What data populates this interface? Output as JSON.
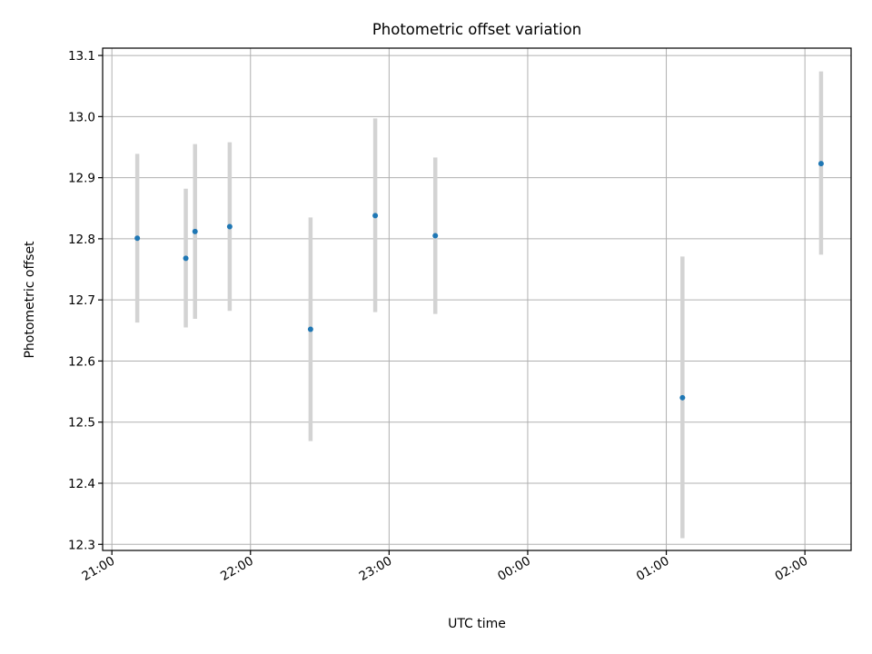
{
  "chart_data": {
    "type": "scatter",
    "title": "Photometric offset variation",
    "xlabel": "UTC time",
    "ylabel": "Photometric offset",
    "x_axis_type": "time",
    "xlim": [
      "20:56",
      "02:20"
    ],
    "ylim": [
      12.29,
      13.112
    ],
    "x_ticks": [
      "21:00",
      "22:00",
      "23:00",
      "00:00",
      "01:00",
      "02:00"
    ],
    "y_ticks": [
      12.3,
      12.4,
      12.5,
      12.6,
      12.7,
      12.8,
      12.9,
      13.0,
      13.1
    ],
    "y_tick_labels": [
      "12.3",
      "12.4",
      "12.5",
      "12.6",
      "12.7",
      "12.8",
      "12.9",
      "13.0",
      "13.1"
    ],
    "grid": true,
    "point_color": "#1f77b4",
    "errorbar_color": "#d3d3d3",
    "points": [
      {
        "x": "21:11",
        "y": 12.801,
        "ylow": 12.663,
        "yhigh": 12.939
      },
      {
        "x": "21:32",
        "y": 12.768,
        "ylow": 12.655,
        "yhigh": 12.882
      },
      {
        "x": "21:36",
        "y": 12.812,
        "ylow": 12.669,
        "yhigh": 12.955
      },
      {
        "x": "21:51",
        "y": 12.82,
        "ylow": 12.682,
        "yhigh": 12.958
      },
      {
        "x": "22:26",
        "y": 12.652,
        "ylow": 12.469,
        "yhigh": 12.835
      },
      {
        "x": "22:54",
        "y": 12.838,
        "ylow": 12.68,
        "yhigh": 12.997
      },
      {
        "x": "23:20",
        "y": 12.805,
        "ylow": 12.677,
        "yhigh": 12.933
      },
      {
        "x": "01:07",
        "y": 12.54,
        "ylow": 12.31,
        "yhigh": 12.771
      },
      {
        "x": "02:07",
        "y": 12.923,
        "ylow": 12.774,
        "yhigh": 13.074
      }
    ]
  }
}
